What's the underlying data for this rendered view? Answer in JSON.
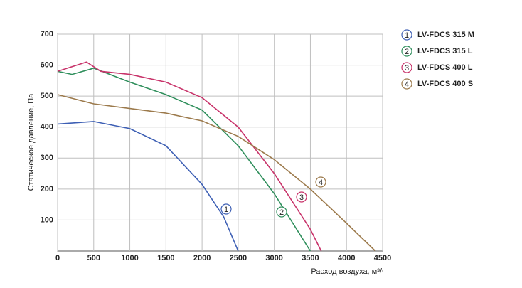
{
  "chart_data": {
    "type": "line",
    "xlabel": "Расход воздуха, м³/ч",
    "ylabel": "Статическое давление, Па",
    "xlim": [
      0,
      4500
    ],
    "xticks": [
      0,
      500,
      1000,
      1500,
      2000,
      2500,
      3000,
      3500,
      4000,
      4500
    ],
    "ylim": [
      0,
      700
    ],
    "yticks": [
      100,
      200,
      300,
      400,
      500,
      600,
      700
    ],
    "grid": true,
    "legend": "right",
    "series": [
      {
        "name": "LV-FDCS 315 M",
        "marker": "1",
        "color": "#3d5fb4",
        "x": [
          0,
          500,
          1000,
          1500,
          2000,
          2300,
          2500
        ],
        "values": [
          410,
          418,
          395,
          340,
          215,
          110,
          0
        ]
      },
      {
        "name": "LV-FDCS 315 L",
        "marker": "2",
        "color": "#2f8f5c",
        "x": [
          0,
          200,
          500,
          1000,
          1500,
          2000,
          2500,
          3000,
          3500
        ],
        "values": [
          580,
          570,
          590,
          545,
          505,
          455,
          340,
          185,
          0
        ]
      },
      {
        "name": "LV-FDCS 400 L",
        "marker": "3",
        "color": "#c8336a",
        "x": [
          0,
          400,
          600,
          1000,
          1500,
          2000,
          2500,
          3000,
          3500,
          3650
        ],
        "values": [
          580,
          610,
          580,
          570,
          545,
          495,
          400,
          250,
          70,
          0
        ]
      },
      {
        "name": "LV-FDCS 400 S",
        "marker": "4",
        "color": "#9c7a4c",
        "x": [
          0,
          500,
          1000,
          1500,
          2000,
          2500,
          3000,
          3500,
          4000,
          4400
        ],
        "values": [
          505,
          475,
          460,
          445,
          420,
          370,
          295,
          200,
          90,
          0
        ]
      }
    ]
  }
}
